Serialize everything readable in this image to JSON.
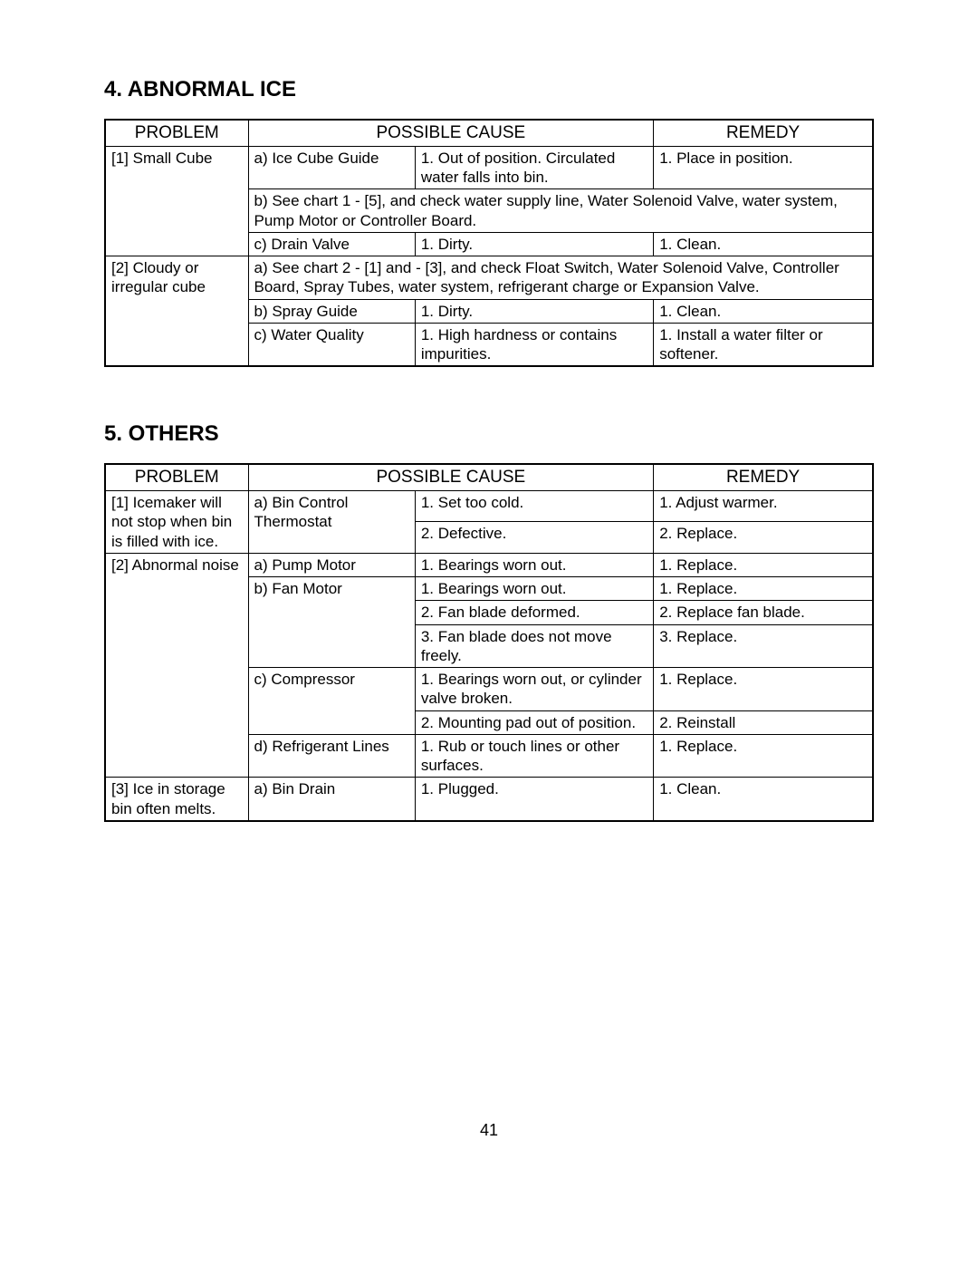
{
  "section4": {
    "heading": "4.  ABNORMAL ICE",
    "headers": {
      "problem": "PROBLEM",
      "cause": "POSSIBLE CAUSE",
      "remedy": "REMEDY"
    },
    "r1": {
      "problem": "[1] Small Cube",
      "cause1": "a) Ice Cube Guide",
      "cause2": "1. Out of position. Circulated water falls into bin.",
      "remedy": "1. Place in position."
    },
    "r2": {
      "causefull": "b) See chart 1 - [5], and check water supply line, Water Solenoid Valve, water system, Pump Motor or Controller Board."
    },
    "r3": {
      "cause1": "c) Drain Valve",
      "cause2": "1. Dirty.",
      "remedy": "1. Clean."
    },
    "r4": {
      "problem": "[2] Cloudy or irregular cube",
      "causefull": "a) See chart 2 - [1] and - [3], and check Float Switch, Water Solenoid Valve, Controller Board, Spray Tubes, water system, refrigerant charge or Expansion Valve."
    },
    "r5": {
      "cause1": "b) Spray Guide",
      "cause2": "1. Dirty.",
      "remedy": "1. Clean."
    },
    "r6": {
      "cause1": "c) Water Quality",
      "cause2": "1. High hardness or contains impurities.",
      "remedy": "1. Install a water filter or softener."
    }
  },
  "section5": {
    "heading": "5.  OTHERS",
    "headers": {
      "problem": "PROBLEM",
      "cause": "POSSIBLE CAUSE",
      "remedy": "REMEDY"
    },
    "r1": {
      "problem": "[1] Icemaker will not stop when bin is filled with ice.",
      "cause1": "a) Bin Control Thermostat",
      "cause2a": "1. Set too cold.",
      "remedya": "1. Adjust warmer.",
      "cause2b": "2. Defective.",
      "remedyb": "2. Replace."
    },
    "r2": {
      "problem": "[2] Abnormal noise",
      "cause1": "a) Pump Motor",
      "cause2": "1. Bearings worn out.",
      "remedy": "1. Replace."
    },
    "r3": {
      "cause1": "b) Fan Motor",
      "cause2": "1. Bearings worn out.",
      "remedy": "1. Replace."
    },
    "r4": {
      "cause2": "2. Fan blade deformed.",
      "remedy": "2. Replace fan blade."
    },
    "r5": {
      "cause2": "3. Fan blade does not move freely.",
      "remedy": "3. Replace."
    },
    "r6": {
      "cause1": "c) Compressor",
      "cause2": "1. Bearings worn out, or cylinder valve broken.",
      "remedy": "1. Replace."
    },
    "r7": {
      "cause2": "2. Mounting pad out of position.",
      "remedy": "2. Reinstall"
    },
    "r8": {
      "cause1": "d) Refrigerant Lines",
      "cause2": "1. Rub or touch lines or other surfaces.",
      "remedy": "1. Replace."
    },
    "r9": {
      "problem": "[3] Ice in storage bin often melts.",
      "cause1": "a) Bin Drain",
      "cause2": "1. Plugged.",
      "remedy": "1. Clean."
    }
  },
  "page_number": "41"
}
